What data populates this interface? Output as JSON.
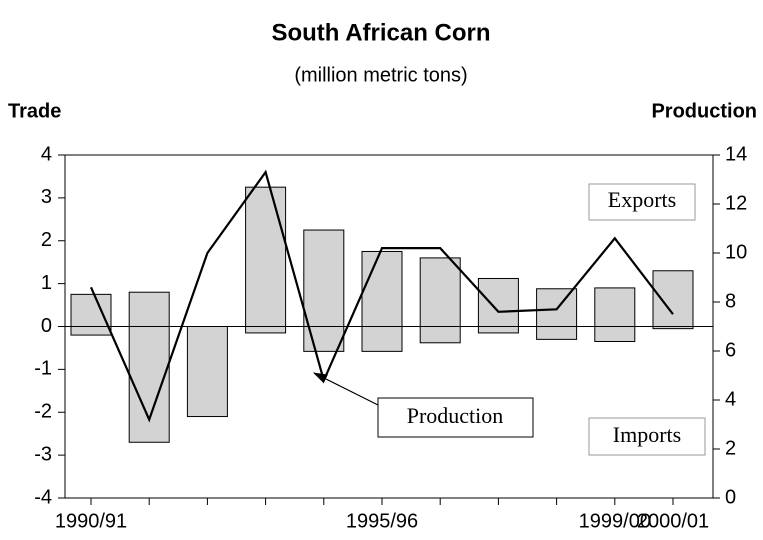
{
  "chart_data": {
    "type": "bar-line",
    "title": "South African Corn",
    "subtitle": "(million metric tons)",
    "y_label": "Trade",
    "y2_label": "Production",
    "categories": [
      "1990/91",
      null,
      null,
      null,
      null,
      "1995/96",
      null,
      null,
      null,
      "1999/00",
      "2000/01"
    ],
    "series": [
      {
        "name": "Exports",
        "type": "bar",
        "color": "#d3d3d3",
        "values": [
          0.75,
          0.8,
          0,
          3.25,
          2.25,
          1.75,
          1.6,
          1.12,
          0.88,
          0.9,
          1.3
        ]
      },
      {
        "name": "Imports",
        "type": "bar",
        "color": "#d3d3d3",
        "values": [
          -0.2,
          -2.7,
          -2.1,
          -0.15,
          -0.58,
          -0.58,
          -0.38,
          -0.15,
          -0.3,
          -0.35,
          -0.05
        ]
      },
      {
        "name": "Production",
        "type": "line",
        "axis": "y2",
        "color": "#000000",
        "values": [
          8.6,
          3.2,
          10.0,
          13.3,
          4.8,
          10.2,
          10.2,
          7.6,
          7.7,
          10.6,
          7.5
        ]
      }
    ],
    "ylim": [
      -4,
      4
    ],
    "yticks": [
      -4,
      -3,
      -2,
      -1,
      0,
      1,
      2,
      3,
      4
    ],
    "y2lim": [
      0,
      14
    ],
    "y2ticks": [
      0,
      2,
      4,
      6,
      8,
      10,
      12,
      14
    ],
    "grid": false
  }
}
